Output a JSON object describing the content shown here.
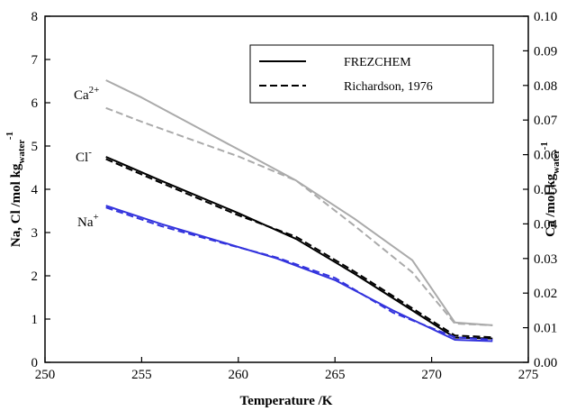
{
  "chart_data": {
    "type": "line",
    "xlabel": "Temperature /K",
    "ylabel_left": {
      "base": "Na, Cl /mol kg",
      "sub": "water",
      "sup": "-1"
    },
    "ylabel_right": {
      "base": "Ca /mol kg",
      "sub": "water",
      "sup": "-1"
    },
    "xlim": [
      250,
      275
    ],
    "ylim_left": [
      0,
      8
    ],
    "ylim_right": [
      0,
      0.1
    ],
    "x_ticks": [
      "250",
      "255",
      "260",
      "265",
      "270",
      "275"
    ],
    "y_left_ticks": [
      "0",
      "1",
      "2",
      "3",
      "4",
      "5",
      "6",
      "7",
      "8"
    ],
    "y_right_ticks": [
      "0.00",
      "0.01",
      "0.02",
      "0.03",
      "0.04",
      "0.05",
      "0.06",
      "0.07",
      "0.08",
      "0.09",
      "0.10"
    ],
    "grid": false,
    "legend": {
      "placement": "top-right",
      "entries": [
        {
          "label": "FREZCHEM",
          "style": "solid"
        },
        {
          "label": "Richardson, 1976",
          "style": "dashed"
        }
      ]
    },
    "annotations": [
      {
        "base": "Ca",
        "sup": "2+"
      },
      {
        "base": "Cl",
        "sup": "-"
      },
      {
        "base": "Na",
        "sup": "+"
      }
    ],
    "series": [
      {
        "ion": "Ca",
        "axis": "right",
        "style": "solid",
        "color": "#aaaaaa",
        "x": [
          253.15,
          255,
          258,
          260,
          263,
          266,
          269,
          271.2,
          273.15
        ],
        "y": [
          0.0815,
          0.0765,
          0.0675,
          0.0615,
          0.0525,
          0.0415,
          0.0295,
          0.0115,
          0.0107
        ]
      },
      {
        "ion": "Ca",
        "axis": "right",
        "style": "dashed",
        "color": "#aaaaaa",
        "x": [
          253.15,
          255,
          258,
          260,
          263,
          266,
          269,
          271.2,
          273.15
        ],
        "y": [
          0.0735,
          0.0695,
          0.0635,
          0.0595,
          0.0525,
          0.0395,
          0.026,
          0.0112,
          0.0107
        ]
      },
      {
        "ion": "Cl",
        "axis": "left",
        "style": "solid",
        "color": "#000000",
        "x": [
          253.15,
          256,
          260,
          263,
          266,
          269,
          271.2,
          273.15
        ],
        "y": [
          4.75,
          4.2,
          3.45,
          2.85,
          2.05,
          1.2,
          0.57,
          0.55
        ]
      },
      {
        "ion": "Cl",
        "axis": "left",
        "style": "dashed",
        "color": "#000000",
        "x": [
          253.15,
          256,
          260,
          263,
          266,
          269,
          271.2,
          273.15
        ],
        "y": [
          4.7,
          4.15,
          3.4,
          2.9,
          2.1,
          1.25,
          0.62,
          0.58
        ]
      },
      {
        "ion": "Na",
        "axis": "left",
        "style": "solid",
        "color": "#3333dd",
        "x": [
          253.15,
          256,
          259,
          262,
          265,
          268,
          271.2,
          273.15
        ],
        "y": [
          3.62,
          3.2,
          2.8,
          2.4,
          1.9,
          1.2,
          0.52,
          0.49
        ]
      },
      {
        "ion": "Na",
        "axis": "left",
        "style": "dashed",
        "color": "#3333dd",
        "x": [
          253.15,
          256,
          259,
          262,
          265,
          268,
          271.2,
          273.15
        ],
        "y": [
          3.58,
          3.15,
          2.78,
          2.42,
          1.95,
          1.15,
          0.58,
          0.52
        ]
      }
    ]
  }
}
